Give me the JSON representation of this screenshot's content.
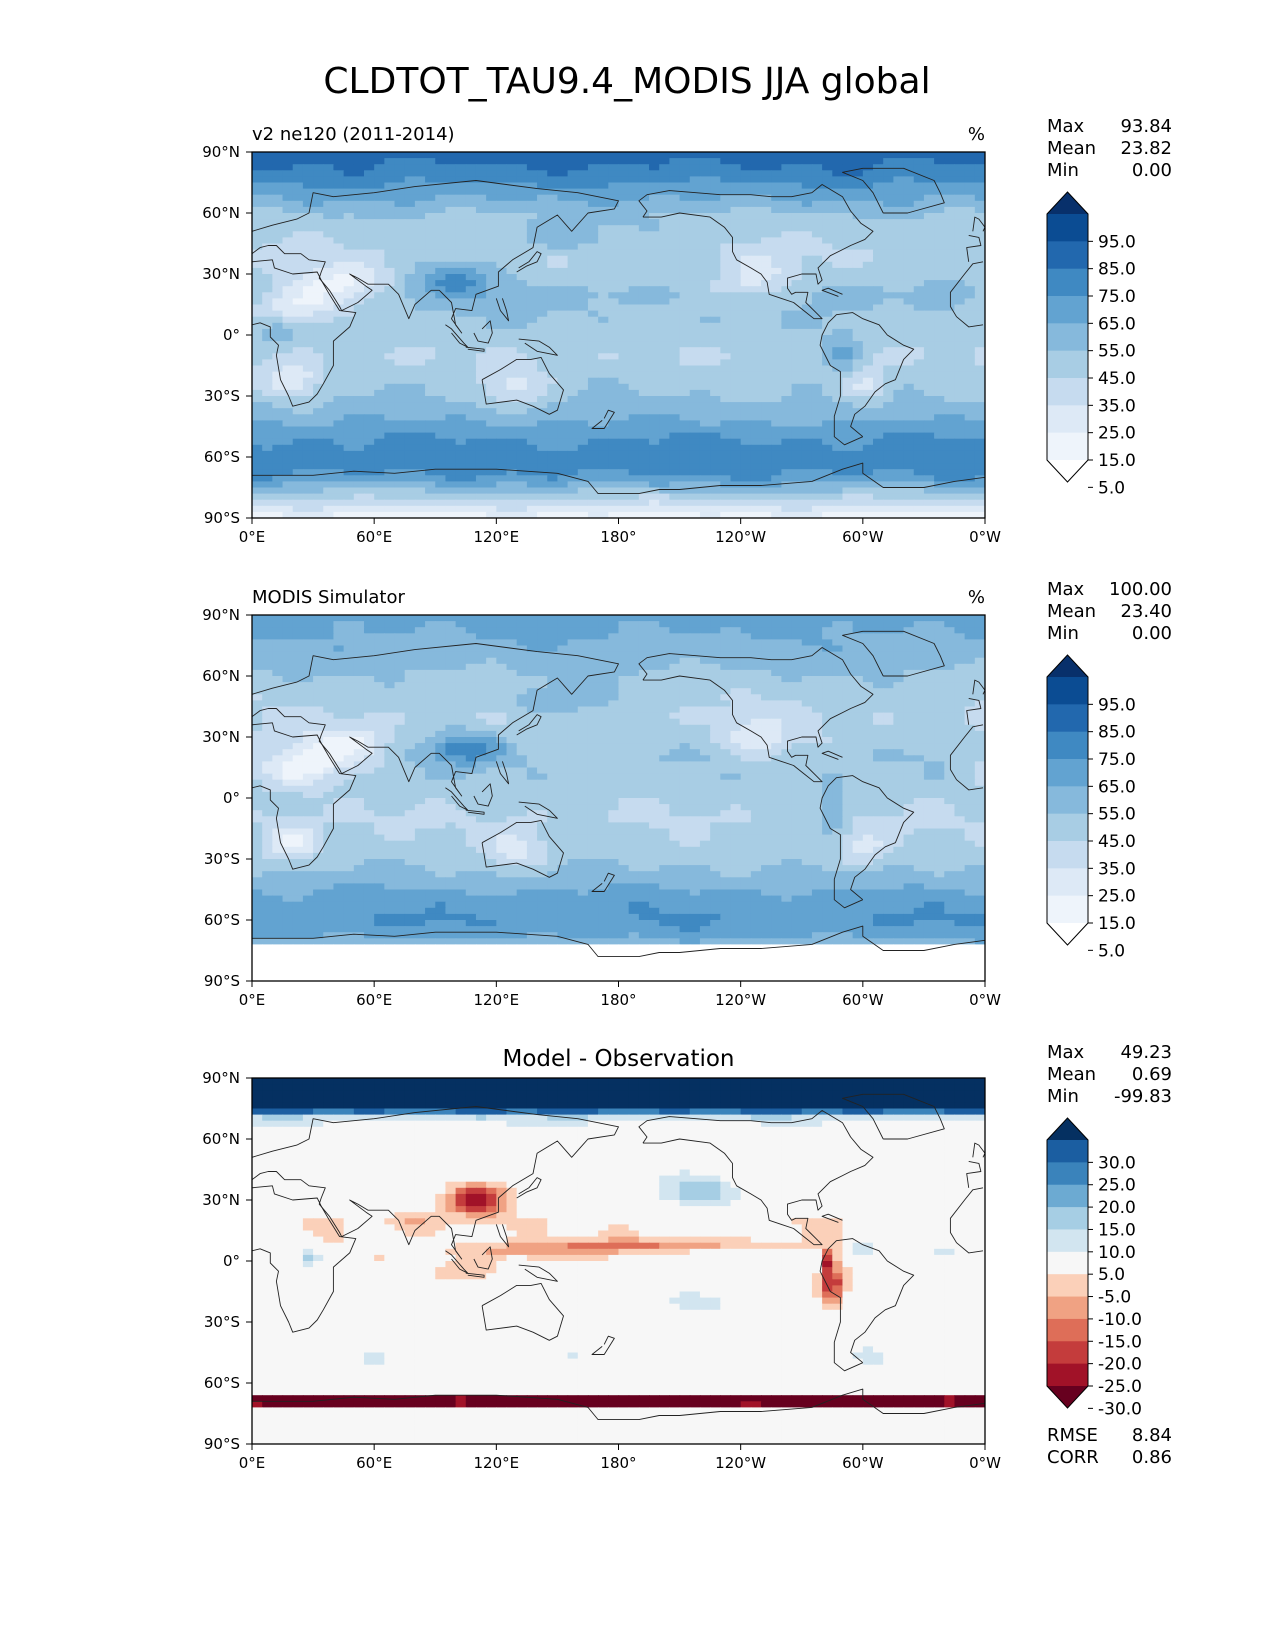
{
  "title": "CLDTOT_TAU9.4_MODIS JJA global",
  "lat_ticks": [
    "90°N",
    "60°N",
    "30°N",
    "0°",
    "30°S",
    "60°S",
    "90°S"
  ],
  "lon_ticks": [
    "0°E",
    "60°E",
    "120°E",
    "180°",
    "120°W",
    "60°W",
    "0°W"
  ],
  "panels": [
    {
      "title": "v2 ne120 (2011-2014)",
      "title_style": "left",
      "units": "%",
      "stats": [
        {
          "label": "Max",
          "value": "93.84"
        },
        {
          "label": "Mean",
          "value": "23.82"
        },
        {
          "label": "Min",
          "value": "0.00"
        }
      ],
      "cmap": "blues",
      "colorbar_colors": [
        "#ffffff",
        "#eef4fb",
        "#dde9f6",
        "#c6dbef",
        "#a8cde4",
        "#86b9dc",
        "#62a3d1",
        "#3f89c2",
        "#2268ae",
        "#0b4c93",
        "#08306b"
      ],
      "colorbar_labels": [
        "95.0",
        "85.0",
        "75.0",
        "65.0",
        "55.0",
        "45.0",
        "35.0",
        "25.0",
        "15.0",
        "5.0"
      ],
      "footer": []
    },
    {
      "title": "MODIS Simulator",
      "title_style": "left",
      "units": "%",
      "stats": [
        {
          "label": "Max",
          "value": "100.00"
        },
        {
          "label": "Mean",
          "value": "23.40"
        },
        {
          "label": "Min",
          "value": "0.00"
        }
      ],
      "cmap": "blues",
      "colorbar_colors": [
        "#ffffff",
        "#eef4fb",
        "#dde9f6",
        "#c6dbef",
        "#a8cde4",
        "#86b9dc",
        "#62a3d1",
        "#3f89c2",
        "#2268ae",
        "#0b4c93",
        "#08306b"
      ],
      "colorbar_labels": [
        "95.0",
        "85.0",
        "75.0",
        "65.0",
        "55.0",
        "45.0",
        "35.0",
        "25.0",
        "15.0",
        "5.0"
      ],
      "footer": []
    },
    {
      "title": "Model - Observation",
      "title_style": "center",
      "units": "",
      "stats": [
        {
          "label": "Max",
          "value": "49.23"
        },
        {
          "label": "Mean",
          "value": "0.69"
        },
        {
          "label": "Min",
          "value": "-99.83"
        }
      ],
      "cmap": "rdbu",
      "colorbar_colors": [
        "#67001f",
        "#a11228",
        "#c43c3c",
        "#de6e58",
        "#f0a283",
        "#fbd0b9",
        "#f7f7f7",
        "#d2e5f0",
        "#a6cee4",
        "#6caad2",
        "#3a83bb",
        "#1b5ea1",
        "#053061"
      ],
      "colorbar_labels": [
        "30.0",
        "25.0",
        "20.0",
        "15.0",
        "10.0",
        "5.0",
        "-5.0",
        "-10.0",
        "-15.0",
        "-20.0",
        "-25.0",
        "-30.0"
      ],
      "footer": [
        {
          "label": "RMSE",
          "value": "8.84"
        },
        {
          "label": "CORR",
          "value": "0.86"
        }
      ]
    }
  ],
  "chart_data": {
    "type": "heatmap",
    "variable": "CLDTOT_TAU9.4_MODIS",
    "season": "JJA",
    "region": "global",
    "units": "%",
    "xlim": [
      0,
      360
    ],
    "ylim": [
      -90,
      90
    ],
    "x_ticks": [
      "0°E",
      "60°E",
      "120°E",
      "180°",
      "120°W",
      "60°W",
      "0°W"
    ],
    "y_ticks": [
      "90°N",
      "60°N",
      "30°N",
      "0°",
      "30°S",
      "60°S",
      "90°S"
    ],
    "panels": [
      {
        "name": "v2 ne120 (2011-2014)",
        "max": 93.84,
        "mean": 23.82,
        "min": 0.0,
        "levels": [
          5,
          15,
          25,
          35,
          45,
          55,
          65,
          75,
          85,
          95
        ]
      },
      {
        "name": "MODIS Simulator",
        "max": 100.0,
        "mean": 23.4,
        "min": 0.0,
        "levels": [
          5,
          15,
          25,
          35,
          45,
          55,
          65,
          75,
          85,
          95
        ]
      },
      {
        "name": "Model - Observation",
        "max": 49.23,
        "mean": 0.69,
        "min": -99.83,
        "levels": [
          -30,
          -25,
          -20,
          -15,
          -10,
          -5,
          5,
          10,
          15,
          20,
          25,
          30
        ],
        "rmse": 8.84,
        "corr": 0.86
      }
    ]
  }
}
